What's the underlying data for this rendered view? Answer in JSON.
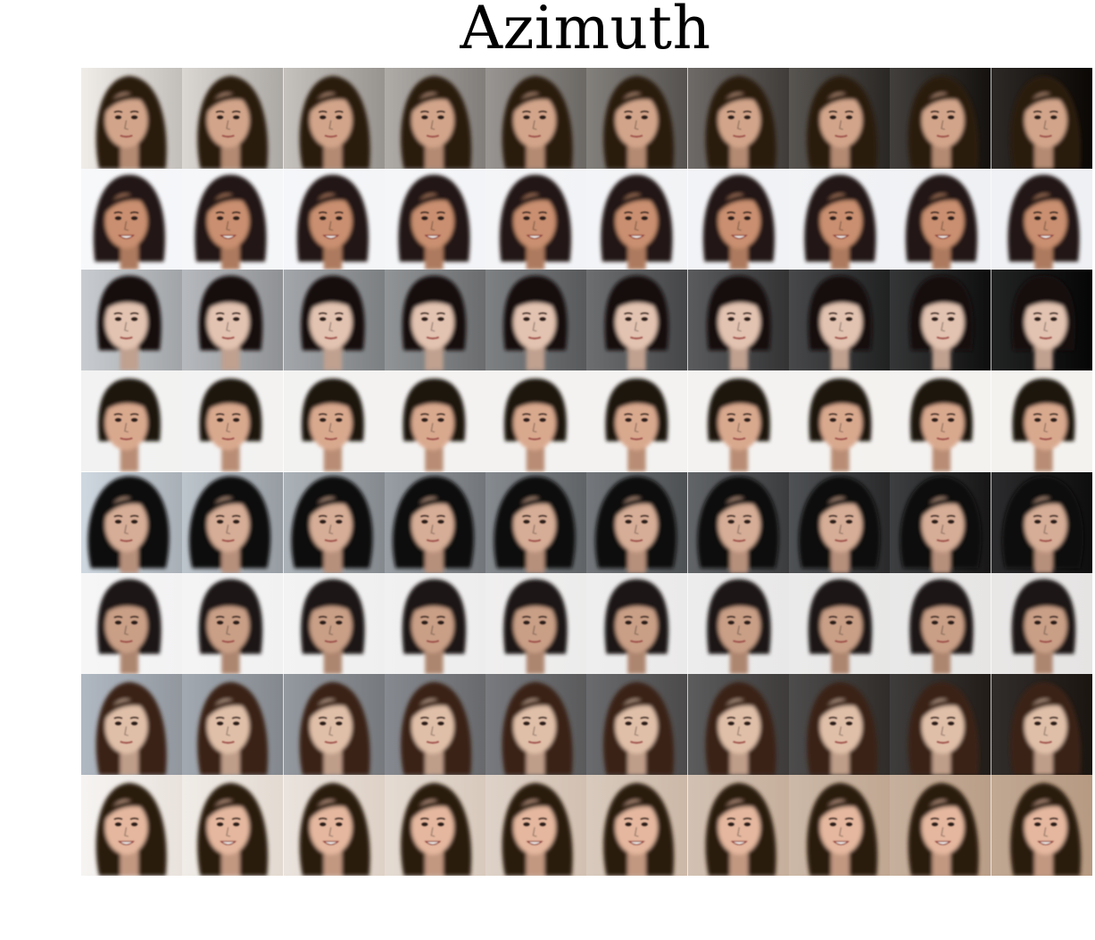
{
  "figure": {
    "title": "Azimuth",
    "rows": [
      {
        "bg_left": "#f0ece8",
        "bg_right": "#0a0704",
        "hair": "#2a1a10",
        "skin": "#d2a58a",
        "style": "long",
        "smile": false
      },
      {
        "bg_left": "#f7f8fa",
        "bg_right": "#eef0f3",
        "hair": "#231812",
        "skin": "#c98f6f",
        "style": "bob",
        "smile": true
      },
      {
        "bg_left": "#c8ccd0",
        "bg_right": "#050505",
        "hair": "#141010",
        "skin": "#e2c2b0",
        "style": "short",
        "smile": false
      },
      {
        "bg_left": "#f2f2f2",
        "bg_right": "#f4f2ef",
        "hair": "#1c120c",
        "skin": "#d9a98e",
        "style": "bowl",
        "smile": false
      },
      {
        "bg_left": "#cfd8e0",
        "bg_right": "#0e0d0d",
        "hair": "#0d0a09",
        "skin": "#d6ad96",
        "style": "curly",
        "smile": false
      },
      {
        "bg_left": "#f6f6f7",
        "bg_right": "#e5e4e3",
        "hair": "#1a1514",
        "skin": "#c99f86",
        "style": "short",
        "smile": false
      },
      {
        "bg_left": "#b0b8c2",
        "bg_right": "#1b1510",
        "hair": "#3a2416",
        "skin": "#e0bfa8",
        "style": "long",
        "smile": false
      },
      {
        "bg_left": "#f6f4f2",
        "bg_right": "#b79a82",
        "hair": "#2c1a10",
        "skin": "#e4b79e",
        "style": "long",
        "smile": true
      }
    ],
    "columns": 10
  }
}
